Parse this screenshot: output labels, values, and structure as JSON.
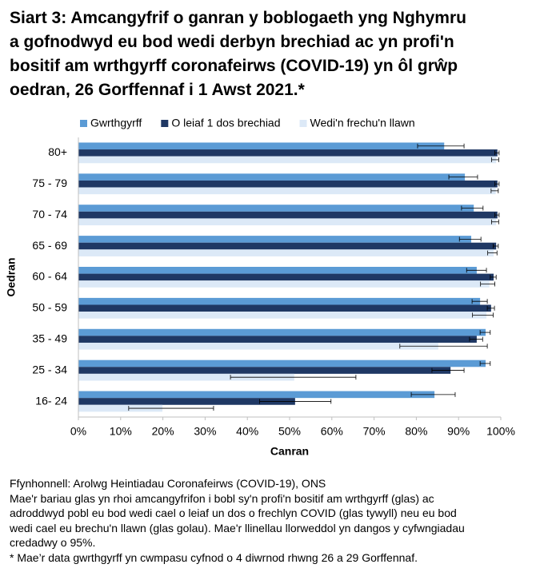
{
  "chart_data": {
    "type": "bar",
    "orientation": "horizontal",
    "title": [
      "Siart 3: Amcangyfrif o ganran y boblogaeth yng Nghymru",
      "a gofnodwyd eu bod wedi derbyn brechiad ac yn profi'n",
      "bositif am wrthgyrff coronafeirws (COVID-19) yn ôl grŵp",
      "oedran, 26 Gorffennaf i 1 Awst 2021.*"
    ],
    "x_label": "Canran",
    "y_label": "Oedran",
    "categories": [
      "80+",
      "75 - 79",
      "70 - 74",
      "65 - 69",
      "60 - 64",
      "50 - 59",
      "35 - 49",
      "25 - 34",
      "16- 24"
    ],
    "series": [
      {
        "name": "Gwrthgyrff",
        "color": "#5b9bd5",
        "values": [
          86.6,
          91.5,
          93.6,
          93.0,
          94.3,
          95.1,
          96.4,
          96.4,
          84.3
        ],
        "ci_low": [
          80.3,
          87.7,
          90.7,
          90.2,
          91.9,
          93.2,
          95.1,
          95.1,
          78.8
        ],
        "ci_high": [
          91.3,
          94.5,
          95.8,
          95.3,
          96.6,
          96.8,
          97.5,
          97.5,
          89.2
        ]
      },
      {
        "name": "O leiaf 1 dos brechiad",
        "color": "#1f3864",
        "values": [
          99.2,
          99.2,
          99.2,
          98.9,
          98.3,
          97.7,
          94.3,
          88.1,
          51.3
        ],
        "ci_low": [
          98.6,
          98.6,
          98.6,
          98.2,
          97.5,
          96.8,
          92.6,
          83.7,
          42.9
        ],
        "ci_high": [
          99.6,
          99.6,
          99.6,
          99.4,
          98.9,
          98.5,
          95.7,
          91.3,
          59.8
        ]
      },
      {
        "name": "Wedi'n frechu'n llawn",
        "color": "#dce9f7",
        "values": [
          98.9,
          98.8,
          98.9,
          98.3,
          97.3,
          96.6,
          85.2,
          51.1,
          19.9
        ],
        "ci_low": [
          97.8,
          97.7,
          97.8,
          96.9,
          95.2,
          93.3,
          76.1,
          36.0,
          11.9
        ],
        "ci_high": [
          99.5,
          99.4,
          99.5,
          99.1,
          98.6,
          98.2,
          96.8,
          65.7,
          32.0
        ]
      }
    ],
    "xlim": [
      0,
      100
    ],
    "xticks": [
      {
        "value": 0,
        "label": "0%"
      },
      {
        "value": 10,
        "label": "10%"
      },
      {
        "value": 20,
        "label": "20%"
      },
      {
        "value": 30,
        "label": "30%"
      },
      {
        "value": 40,
        "label": "40%"
      },
      {
        "value": 50,
        "label": "50%"
      },
      {
        "value": 60,
        "label": "60%"
      },
      {
        "value": 70,
        "label": "70%"
      },
      {
        "value": 80,
        "label": "80%"
      },
      {
        "value": 90,
        "label": "90%"
      },
      {
        "value": 100,
        "label": "100%"
      }
    ],
    "legend": "top",
    "notes": [
      "Ffynhonnell: Arolwg Heintiadau Coronafeirws (COVID-19), ONS",
      "Mae'r bariau glas yn rhoi amcangyfrifon i bobl sy'n profi'n bositif am wrthgyrff (glas) ac",
      "adroddwyd pobl eu bod wedi cael o leiaf un dos o frechlyn COVID (glas tywyll) neu eu bod",
      "wedi cael eu brechu'n llawn (glas golau).  Mae'r llinellau llorweddol yn dangos y cyfwngiadau",
      "credadwy o 95%.",
      "* Mae’r data gwrthgyrff yn cwmpasu cyfnod o 4 diwrnod rhwng 26 a 29 Gorffennaf."
    ]
  }
}
